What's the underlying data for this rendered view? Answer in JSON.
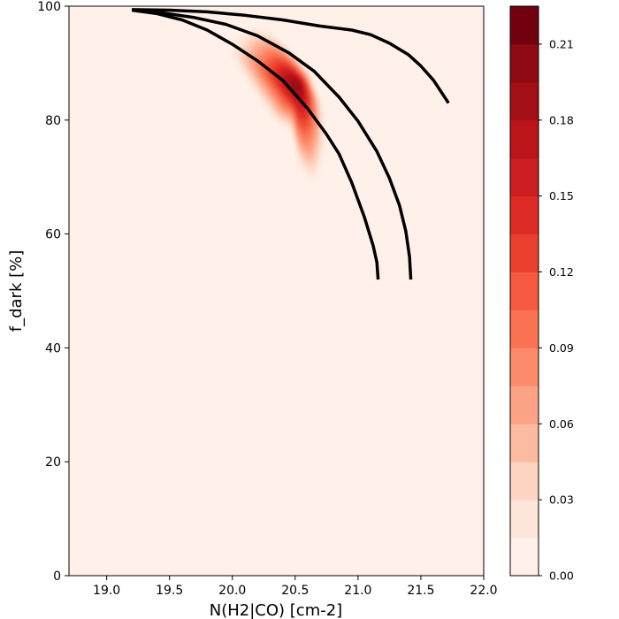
{
  "chart_data": {
    "type": "heatmap",
    "subtype": "filled-contour with overlaid model curves",
    "title": "",
    "xlabel": "N(H2|CO) [cm-2]",
    "ylabel": "f_dark [%]",
    "xlim": [
      18.7,
      22.0
    ],
    "ylim": [
      0,
      100
    ],
    "x_ticks": [
      19.0,
      19.5,
      20.0,
      20.5,
      21.0,
      21.5,
      22.0
    ],
    "x_tick_labels": [
      "19.0",
      "19.5",
      "20.0",
      "20.5",
      "21.0",
      "21.5",
      "22.0"
    ],
    "y_ticks": [
      0,
      20,
      40,
      60,
      80,
      100
    ],
    "y_tick_labels": [
      "0",
      "20",
      "40",
      "60",
      "80",
      "100"
    ],
    "grid": false,
    "colormap": "Reds",
    "colorbar": {
      "range": [
        0.0,
        0.225
      ],
      "levels": [
        0.0,
        0.015,
        0.03,
        0.045,
        0.06,
        0.075,
        0.09,
        0.105,
        0.12,
        0.135,
        0.15,
        0.165,
        0.18,
        0.195,
        0.21,
        0.225
      ],
      "tick_values": [
        0.0,
        0.03,
        0.06,
        0.09,
        0.12,
        0.15,
        0.18,
        0.21
      ],
      "tick_labels": [
        "0.00",
        "0.03",
        "0.06",
        "0.09",
        "0.12",
        "0.15",
        "0.18",
        "0.21"
      ],
      "colors": [
        "#fff0e9",
        "#fee5d9",
        "#fdd4c2",
        "#fcbba1",
        "#fca386",
        "#fc8b6c",
        "#fb7353",
        "#f55a40",
        "#ec402e",
        "#de2b25",
        "#cc1d20",
        "#bb151a",
        "#a30f16",
        "#8e0b13",
        "#72000f"
      ]
    },
    "density_peak": {
      "x": 20.52,
      "y": 86,
      "value": 0.22
    },
    "density_contour": [
      [
        20.05,
        94
      ],
      [
        20.15,
        96
      ],
      [
        20.3,
        95
      ],
      [
        20.45,
        92
      ],
      [
        20.6,
        88
      ],
      [
        20.7,
        82
      ],
      [
        20.72,
        75
      ],
      [
        20.65,
        69
      ],
      [
        20.55,
        72
      ],
      [
        20.5,
        78
      ],
      [
        20.35,
        80
      ],
      [
        20.22,
        84
      ],
      [
        20.1,
        88
      ],
      [
        20.0,
        92
      ]
    ],
    "curves": [
      {
        "x": [
          19.2,
          19.4,
          19.6,
          19.8,
          20.0,
          20.2,
          20.4,
          20.6,
          20.75,
          20.85,
          20.95,
          21.05,
          21.12,
          21.15,
          21.16
        ],
        "y": [
          99.3,
          98.7,
          97.6,
          95.8,
          93.3,
          90.4,
          87.0,
          82.0,
          77.5,
          74.0,
          69.0,
          63.0,
          58.0,
          55.0,
          52.0
        ]
      },
      {
        "x": [
          19.25,
          19.45,
          19.7,
          19.95,
          20.2,
          20.45,
          20.65,
          20.85,
          21.0,
          21.15,
          21.25,
          21.33,
          21.38,
          21.41,
          21.42
        ],
        "y": [
          99.3,
          98.8,
          98.0,
          96.8,
          94.8,
          91.8,
          88.6,
          84.0,
          79.8,
          74.5,
          69.8,
          65.0,
          60.5,
          56.0,
          52.0
        ]
      },
      {
        "x": [
          19.2,
          19.5,
          19.8,
          20.1,
          20.4,
          20.7,
          20.95,
          21.1,
          21.25,
          21.4,
          21.5,
          21.6,
          21.72
        ],
        "y": [
          99.4,
          99.3,
          99.0,
          98.4,
          97.6,
          96.5,
          95.8,
          95.0,
          93.5,
          91.5,
          89.5,
          87.0,
          83.0
        ]
      }
    ]
  }
}
